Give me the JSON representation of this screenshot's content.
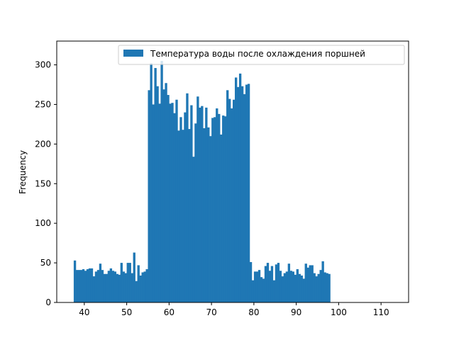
{
  "chart_data": {
    "type": "bar",
    "subtype": "histogram",
    "title": "",
    "xlabel": "",
    "ylabel": "Frequency",
    "xlim": [
      33.5,
      116.5
    ],
    "ylim": [
      0,
      330
    ],
    "xticks": [
      40,
      50,
      60,
      70,
      80,
      90,
      100,
      110
    ],
    "yticks": [
      0,
      50,
      100,
      150,
      200,
      250,
      300
    ],
    "grid": false,
    "legend": {
      "position": "top-right",
      "entries": [
        "Температура воды после охлаждения поршней"
      ]
    },
    "bar_color": "#1f77b4",
    "bin_width": 0.5,
    "bins_start": 37.5,
    "series": [
      {
        "name": "Температура воды после охлаждения поршней",
        "values": [
          53,
          41,
          41,
          41,
          42,
          40,
          42,
          43,
          43,
          33,
          39,
          41,
          49,
          41,
          36,
          36,
          40,
          43,
          40,
          39,
          36,
          35,
          50,
          39,
          37,
          50,
          50,
          37,
          63,
          27,
          47,
          34,
          38,
          39,
          42,
          268,
          302,
          250,
          296,
          273,
          251,
          305,
          269,
          277,
          262,
          251,
          252,
          239,
          256,
          217,
          234,
          218,
          240,
          264,
          219,
          249,
          184,
          226,
          260,
          246,
          248,
          220,
          246,
          221,
          210,
          233,
          234,
          245,
          238,
          212,
          236,
          235,
          268,
          257,
          245,
          256,
          284,
          272,
          289,
          273,
          263,
          275,
          276,
          51,
          28,
          39,
          39,
          41,
          32,
          30,
          46,
          50,
          40,
          46,
          28,
          48,
          50,
          40,
          33,
          37,
          39,
          49,
          40,
          39,
          35,
          42,
          36,
          34,
          30,
          49,
          44,
          47,
          47,
          37,
          33,
          36,
          41,
          52,
          38,
          37,
          36
        ]
      }
    ]
  }
}
